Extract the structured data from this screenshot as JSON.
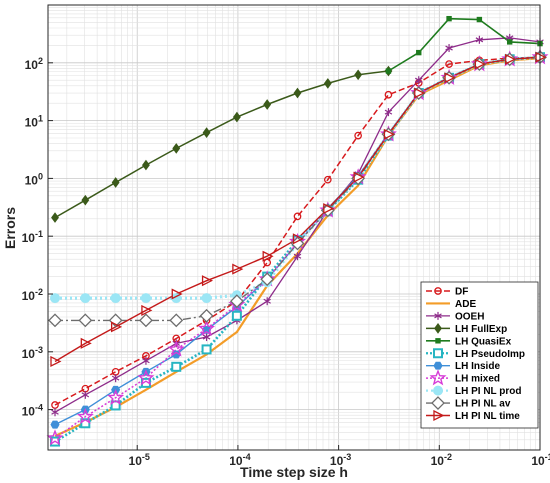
{
  "chart_data": {
    "type": "line",
    "xlabel": "Time step size h",
    "ylabel": "Errors",
    "xscale": "log",
    "yscale": "log",
    "xlim": [
      1.3e-06,
      0.1
    ],
    "ylim": [
      2e-05,
      1000
    ],
    "grid": true,
    "legend_position": "bottom-right",
    "x_ticks": [
      {
        "value": 1e-05,
        "base": "10",
        "exp": "-5"
      },
      {
        "value": 0.0001,
        "base": "10",
        "exp": "-4"
      },
      {
        "value": 0.001,
        "base": "10",
        "exp": "-3"
      },
      {
        "value": 0.01,
        "base": "10",
        "exp": "-2"
      },
      {
        "value": 0.1,
        "base": "10",
        "exp": "-1"
      }
    ],
    "y_ticks": [
      {
        "value": 0.0001,
        "base": "10",
        "exp": "-4"
      },
      {
        "value": 0.001,
        "base": "10",
        "exp": "-3"
      },
      {
        "value": 0.01,
        "base": "10",
        "exp": "-2"
      },
      {
        "value": 0.1,
        "base": "10",
        "exp": "-1"
      },
      {
        "value": 1,
        "base": "10",
        "exp": "0"
      },
      {
        "value": 10,
        "base": "10",
        "exp": "1"
      },
      {
        "value": 100,
        "base": "10",
        "exp": "2"
      }
    ],
    "x": [
      1.526e-06,
      3.052e-06,
      6.104e-06,
      1.2207e-05,
      2.4414e-05,
      4.8828e-05,
      9.7656e-05,
      0.00019531,
      0.00039063,
      0.00078125,
      0.0015625,
      0.003125,
      0.00625,
      0.0125,
      0.025,
      0.05,
      0.1
    ],
    "series": [
      {
        "name": "DF",
        "color": "#d7191c",
        "dash": "6,3",
        "width": 1.5,
        "marker": "circle",
        "values": [
          0.00012,
          0.00023,
          0.00045,
          0.00085,
          0.0017,
          0.0035,
          0.0075,
          0.035,
          0.22,
          0.95,
          5.5,
          28,
          45,
          95,
          110,
          120,
          125
        ]
      },
      {
        "name": "ADE",
        "color": "#f39c28",
        "dash": "",
        "width": 2.2,
        "marker": "none",
        "values": [
          3.5e-05,
          6e-05,
          0.00011,
          0.00022,
          0.00045,
          0.0009,
          0.0022,
          0.014,
          0.05,
          0.23,
          0.75,
          5.5,
          28,
          50,
          90,
          110,
          120
        ]
      },
      {
        "name": "OOEH",
        "color": "#8e2c8a",
        "dash": "",
        "width": 1.3,
        "marker": "asterisk",
        "values": [
          9e-05,
          0.00018,
          0.00035,
          0.0007,
          0.0014,
          0.0018,
          0.0035,
          0.0075,
          0.045,
          0.28,
          1.2,
          14,
          50,
          180,
          250,
          270,
          230
        ]
      },
      {
        "name": "LH FullExp",
        "color": "#3b5a1a",
        "dash": "",
        "width": 1.5,
        "marker": "diamond",
        "values": [
          0.21,
          0.42,
          0.85,
          1.7,
          3.3,
          6.2,
          11.5,
          19,
          30,
          44,
          62,
          72,
          null,
          null,
          null,
          null,
          null
        ]
      },
      {
        "name": "LH QuasiEx",
        "color": "#1e7b1e",
        "dash": "",
        "width": 1.6,
        "marker": "square-small",
        "values": [
          null,
          null,
          null,
          null,
          null,
          null,
          null,
          null,
          null,
          null,
          null,
          72,
          150,
          580,
          560,
          230,
          215
        ]
      },
      {
        "name": "LH PseudoImp",
        "color": "#26b5c2",
        "dash": "2,2",
        "width": 2.6,
        "marker": "square-open",
        "values": [
          2.8e-05,
          5.8e-05,
          0.000118,
          0.00029,
          0.00055,
          0.0011,
          0.0042,
          0.02,
          0.085,
          0.27,
          0.95,
          5.5,
          30,
          55,
          95,
          115,
          125
        ]
      },
      {
        "name": "LH Inside",
        "color": "#3f8fd8",
        "dash": "",
        "width": 1.4,
        "marker": "hexagon",
        "values": [
          5.5e-05,
          0.0001,
          0.00022,
          0.00045,
          0.0009,
          0.0024,
          0.006,
          0.018,
          0.075,
          0.3,
          1.1,
          6,
          30,
          55,
          95,
          115,
          125
        ]
      },
      {
        "name": "LH mixed",
        "color": "#d73cd7",
        "dash": "2,2",
        "width": 1.5,
        "marker": "star",
        "values": [
          3.2e-05,
          7.5e-05,
          0.00016,
          0.00035,
          0.0011,
          0.0025,
          0.0065,
          0.018,
          0.08,
          0.28,
          1.05,
          5.8,
          30,
          55,
          95,
          115,
          125
        ]
      },
      {
        "name": "LH PI NL prod",
        "color": "#9be6f5",
        "dash": "2,3",
        "width": 3.2,
        "marker": "circle-filled",
        "values": [
          0.0085,
          0.0085,
          0.0085,
          0.0085,
          0.0085,
          0.0085,
          0.0095,
          0.016,
          0.075,
          0.28,
          1.0,
          5.8,
          30,
          55,
          95,
          115,
          125
        ]
      },
      {
        "name": "LH PI NL av",
        "color": "#6d6d6d",
        "dash": "8,3,2,3",
        "width": 1.4,
        "marker": "diamond-open",
        "values": [
          0.0035,
          0.0035,
          0.0035,
          0.0035,
          0.0035,
          0.0042,
          0.0075,
          0.018,
          0.075,
          0.28,
          1.0,
          5.8,
          30,
          55,
          95,
          115,
          125
        ]
      },
      {
        "name": "LH PI NL time",
        "color": "#c41a1a",
        "dash": "",
        "width": 1.4,
        "marker": "triangle-right",
        "values": [
          0.00068,
          0.0014,
          0.0027,
          0.0052,
          0.01,
          0.017,
          0.027,
          0.045,
          0.09,
          0.3,
          1.05,
          5.8,
          30,
          55,
          95,
          115,
          125
        ]
      }
    ]
  }
}
